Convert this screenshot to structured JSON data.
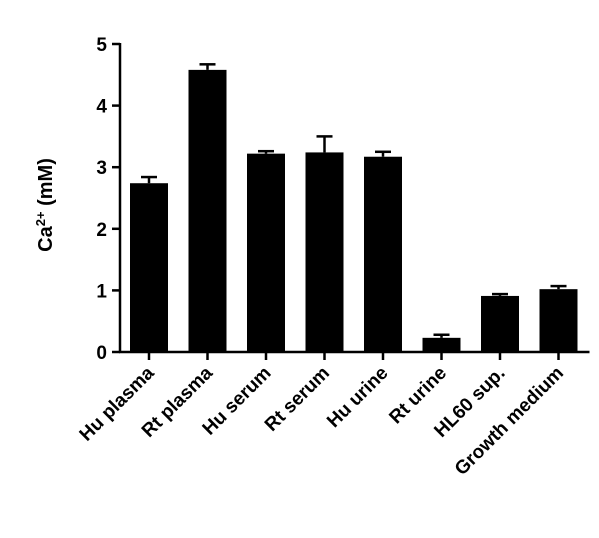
{
  "chart_data": {
    "type": "bar",
    "categories": [
      "Hu plasma",
      "Rt plasma",
      "Hu serum",
      "Rt serum",
      "Hu urine",
      "Rt urine",
      "HL60 sup.",
      "Growth medium"
    ],
    "values": [
      2.74,
      4.58,
      3.22,
      3.24,
      3.17,
      0.23,
      0.91,
      1.02
    ],
    "error": [
      0.1,
      0.09,
      0.04,
      0.26,
      0.08,
      0.05,
      0.03,
      0.05
    ],
    "title": "",
    "xlabel": "",
    "ylabel": {
      "base": "Ca",
      "sup": "2+",
      "rest": " (mM)"
    },
    "ylim": [
      0,
      5
    ],
    "yticks": [
      0,
      1,
      2,
      3,
      4,
      5
    ],
    "bar_color": "#000000",
    "grid": false,
    "legend": "none"
  }
}
